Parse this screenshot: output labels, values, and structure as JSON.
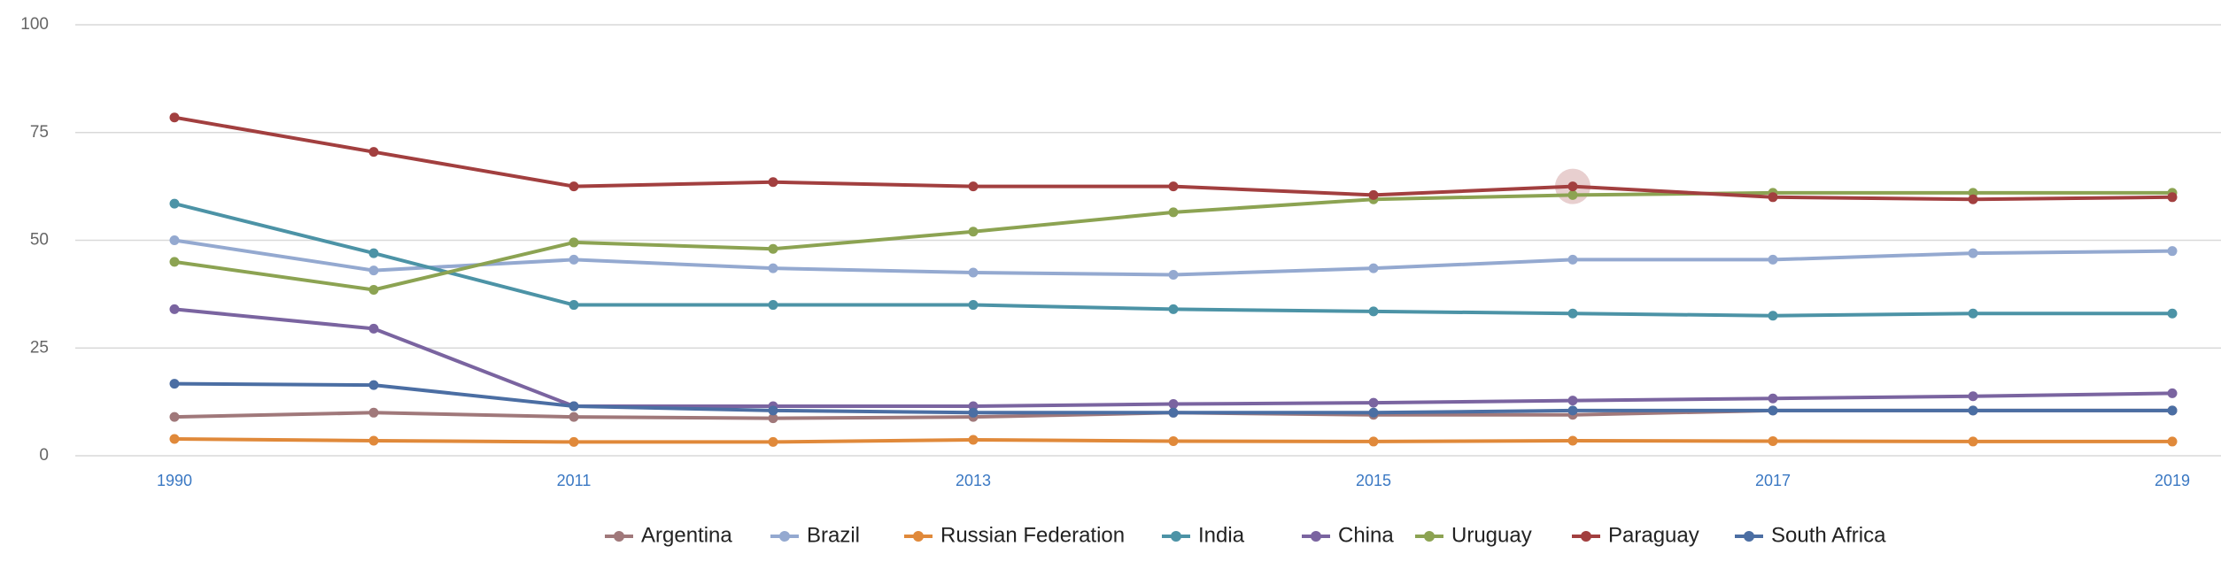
{
  "chart_data": {
    "type": "line",
    "x": [
      "1990",
      "2000",
      "2011",
      "2012",
      "2013",
      "2014",
      "2015",
      "2016",
      "2017",
      "2018",
      "2019"
    ],
    "x_tick_labels": [
      "1990",
      "2011",
      "2013",
      "2015",
      "2017",
      "2019"
    ],
    "y_ticks": [
      0,
      25,
      50,
      75,
      100
    ],
    "ylim": [
      0,
      100
    ],
    "grid": true,
    "legend_position": "bottom",
    "highlight": {
      "series": "Paraguay",
      "x": "2016"
    },
    "series": [
      {
        "name": "Argentina",
        "color": "#a0787a",
        "values": [
          9,
          10,
          9,
          8.7,
          9,
          10,
          9.5,
          9.5,
          10.5,
          10.5,
          10.5
        ]
      },
      {
        "name": "Brazil",
        "color": "#94a9d0",
        "values": [
          50,
          43,
          45.5,
          43.5,
          42.5,
          42,
          43.5,
          45.5,
          45.5,
          47,
          47.5
        ]
      },
      {
        "name": "Russian Federation",
        "color": "#e0893a",
        "values": [
          3.9,
          3.5,
          3.2,
          3.2,
          3.7,
          3.4,
          3.3,
          3.5,
          3.4,
          3.3,
          3.3
        ]
      },
      {
        "name": "India",
        "color": "#4c93a6",
        "values": [
          58.5,
          47,
          35,
          35,
          35,
          34,
          33.5,
          33,
          32.5,
          33,
          33
        ]
      },
      {
        "name": "China",
        "color": "#7a64a0",
        "values": [
          34,
          29.5,
          11.5,
          11.5,
          11.5,
          12,
          12.3,
          12.8,
          13.3,
          13.8,
          14.5
        ]
      },
      {
        "name": "Uruguay",
        "color": "#8ca352",
        "values": [
          45,
          38.5,
          49.5,
          48,
          52,
          56.5,
          59.5,
          60.5,
          61,
          61,
          61
        ]
      },
      {
        "name": "Paraguay",
        "color": "#a23f3f",
        "values": [
          78.5,
          70.5,
          62.5,
          63.5,
          62.5,
          62.5,
          60.5,
          62.5,
          60,
          59.5,
          60
        ]
      },
      {
        "name": "South Africa",
        "color": "#4b6ea3",
        "values": [
          16.7,
          16.4,
          11.5,
          10.5,
          10,
          10,
          10,
          10.5,
          10.5,
          10.5,
          10.5
        ]
      }
    ]
  }
}
